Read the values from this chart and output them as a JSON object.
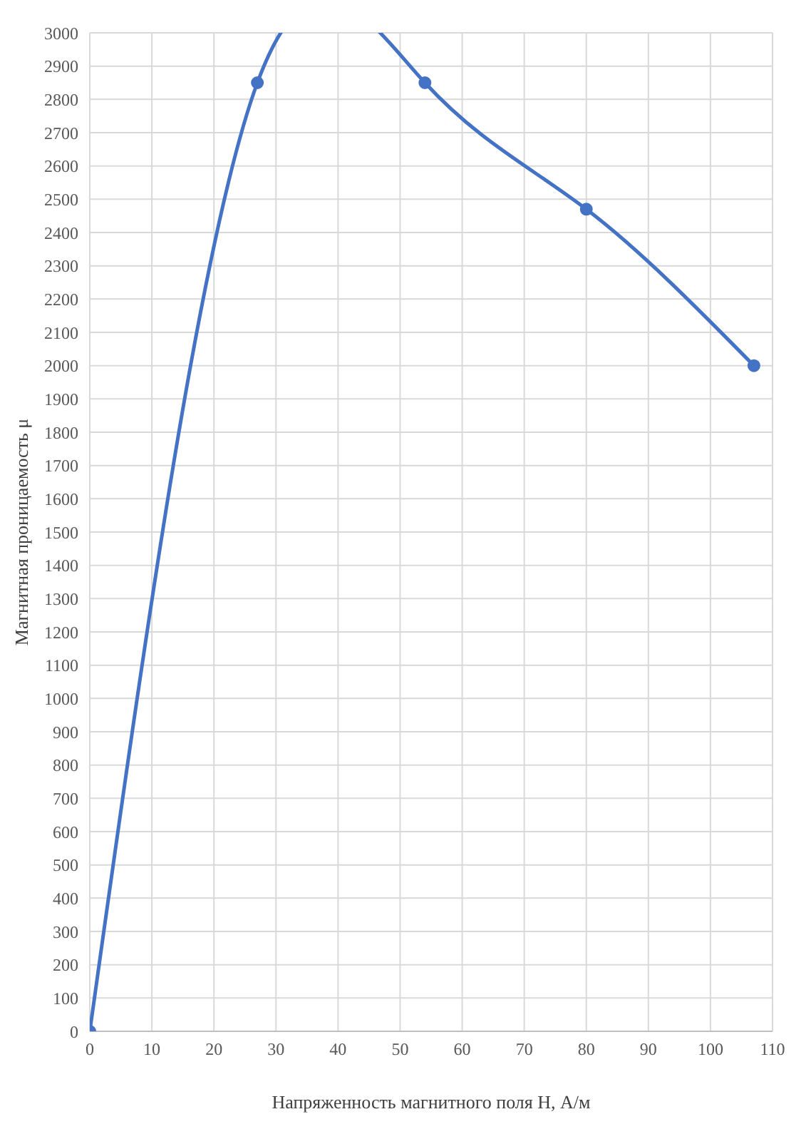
{
  "chart_data": {
    "type": "line",
    "xlabel": "Напряженность магнитного поля H, А/м",
    "ylabel": "Магнитная проницаемость μ",
    "x": [
      0,
      27,
      54,
      80,
      107
    ],
    "series": [
      {
        "color": "#4472c4",
        "values": [
          0,
          2850,
          2850,
          2470,
          2000
        ]
      }
    ],
    "xlim": [
      0,
      110
    ],
    "xticks": [
      0,
      10,
      20,
      30,
      40,
      50,
      60,
      70,
      80,
      90,
      100,
      110
    ],
    "ylim": [
      0,
      3000
    ],
    "yticks": [
      0,
      100,
      200,
      300,
      400,
      500,
      600,
      700,
      800,
      900,
      1000,
      1100,
      1200,
      1300,
      1400,
      1500,
      1600,
      1700,
      1800,
      1900,
      2000,
      2100,
      2200,
      2300,
      2400,
      2500,
      2600,
      2700,
      2800,
      2900,
      3000
    ],
    "grid": true,
    "marker": "circle",
    "line_style": "solid"
  }
}
